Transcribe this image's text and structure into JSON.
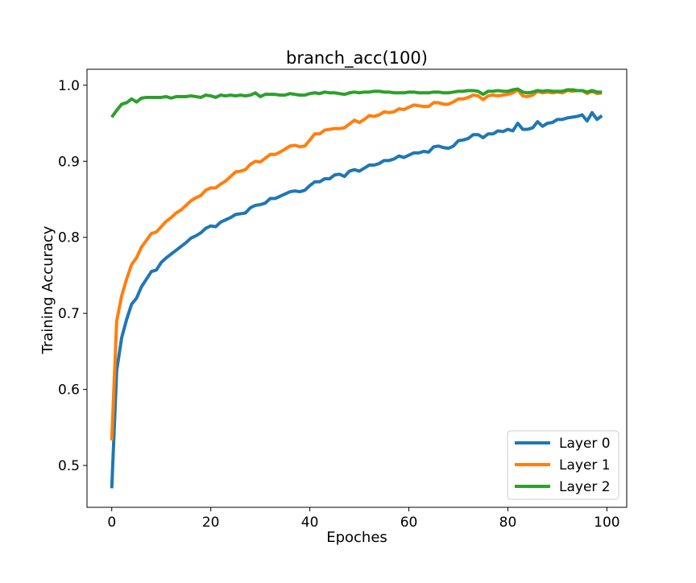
{
  "chart_data": {
    "type": "line",
    "title": "branch_acc(100)",
    "xlabel": "Epoches",
    "ylabel": "Training Accuracy",
    "xlim": [
      -5,
      104
    ],
    "ylim": [
      0.445,
      1.021
    ],
    "xticks": [
      0,
      20,
      40,
      60,
      80,
      100
    ],
    "yticks": [
      0.5,
      0.6,
      0.7,
      0.8,
      0.9,
      1.0
    ],
    "xtick_labels": [
      "0",
      "20",
      "40",
      "60",
      "80",
      "100"
    ],
    "ytick_labels": [
      "0.5",
      "0.6",
      "0.7",
      "0.8",
      "0.9",
      "1.0"
    ],
    "grid": false,
    "legend_position": "bottom-right",
    "series": [
      {
        "name": "Layer 0",
        "color": "#1f77b4",
        "values": [
          0.47,
          0.625,
          0.668,
          0.692,
          0.712,
          0.72,
          0.735,
          0.745,
          0.755,
          0.757,
          0.767,
          0.773,
          0.778,
          0.783,
          0.788,
          0.793,
          0.799,
          0.802,
          0.806,
          0.812,
          0.815,
          0.814,
          0.82,
          0.823,
          0.826,
          0.83,
          0.831,
          0.832,
          0.839,
          0.842,
          0.843,
          0.845,
          0.851,
          0.851,
          0.854,
          0.857,
          0.86,
          0.861,
          0.86,
          0.862,
          0.868,
          0.873,
          0.873,
          0.877,
          0.877,
          0.882,
          0.883,
          0.88,
          0.887,
          0.889,
          0.887,
          0.891,
          0.895,
          0.895,
          0.897,
          0.901,
          0.901,
          0.903,
          0.907,
          0.905,
          0.908,
          0.911,
          0.911,
          0.913,
          0.912,
          0.919,
          0.92,
          0.918,
          0.917,
          0.92,
          0.927,
          0.928,
          0.93,
          0.935,
          0.935,
          0.931,
          0.936,
          0.936,
          0.94,
          0.939,
          0.942,
          0.94,
          0.95,
          0.942,
          0.942,
          0.944,
          0.952,
          0.946,
          0.95,
          0.951,
          0.955,
          0.955,
          0.957,
          0.958,
          0.959,
          0.961,
          0.953,
          0.964,
          0.955,
          0.96
        ]
      },
      {
        "name": "Layer 1",
        "color": "#ff7f0e",
        "values": [
          0.533,
          0.69,
          0.723,
          0.745,
          0.764,
          0.773,
          0.787,
          0.796,
          0.805,
          0.807,
          0.814,
          0.821,
          0.826,
          0.832,
          0.836,
          0.842,
          0.848,
          0.852,
          0.855,
          0.862,
          0.865,
          0.865,
          0.87,
          0.874,
          0.88,
          0.886,
          0.887,
          0.889,
          0.896,
          0.9,
          0.899,
          0.904,
          0.909,
          0.909,
          0.912,
          0.916,
          0.92,
          0.921,
          0.919,
          0.92,
          0.928,
          0.936,
          0.936,
          0.941,
          0.942,
          0.943,
          0.943,
          0.944,
          0.949,
          0.954,
          0.951,
          0.955,
          0.96,
          0.959,
          0.961,
          0.965,
          0.964,
          0.965,
          0.969,
          0.968,
          0.971,
          0.974,
          0.973,
          0.972,
          0.972,
          0.977,
          0.977,
          0.975,
          0.975,
          0.978,
          0.982,
          0.982,
          0.984,
          0.987,
          0.986,
          0.981,
          0.986,
          0.987,
          0.986,
          0.987,
          0.988,
          0.99,
          0.994,
          0.986,
          0.985,
          0.987,
          0.992,
          0.99,
          0.991,
          0.99,
          0.991,
          0.99,
          0.993,
          0.992,
          0.993,
          0.993,
          0.989,
          0.992,
          0.989,
          0.99
        ]
      },
      {
        "name": "Layer 2",
        "color": "#2ca02c",
        "values": [
          0.958,
          0.967,
          0.975,
          0.977,
          0.982,
          0.978,
          0.983,
          0.984,
          0.984,
          0.984,
          0.984,
          0.985,
          0.983,
          0.985,
          0.985,
          0.985,
          0.986,
          0.985,
          0.984,
          0.987,
          0.986,
          0.984,
          0.987,
          0.986,
          0.987,
          0.986,
          0.987,
          0.986,
          0.987,
          0.99,
          0.985,
          0.988,
          0.988,
          0.988,
          0.987,
          0.987,
          0.989,
          0.988,
          0.987,
          0.987,
          0.989,
          0.99,
          0.989,
          0.991,
          0.99,
          0.99,
          0.989,
          0.988,
          0.99,
          0.991,
          0.99,
          0.991,
          0.991,
          0.992,
          0.992,
          0.991,
          0.991,
          0.99,
          0.99,
          0.99,
          0.991,
          0.991,
          0.99,
          0.99,
          0.99,
          0.991,
          0.991,
          0.99,
          0.99,
          0.991,
          0.992,
          0.992,
          0.993,
          0.993,
          0.992,
          0.988,
          0.992,
          0.992,
          0.993,
          0.992,
          0.992,
          0.994,
          0.995,
          0.991,
          0.99,
          0.991,
          0.993,
          0.992,
          0.993,
          0.992,
          0.992,
          0.992,
          0.994,
          0.994,
          0.993,
          0.993,
          0.991,
          0.993,
          0.991,
          0.991
        ]
      }
    ]
  }
}
